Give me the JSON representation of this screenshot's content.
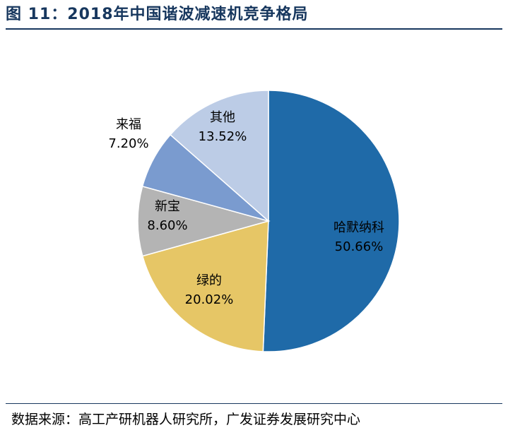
{
  "figure": {
    "title": "图 11：2018年中国谐波减速机竞争格局",
    "source": "数据来源：高工产研机器人研究所，广发证券发展研究中心"
  },
  "chart_data": {
    "type": "pie",
    "start_angle_deg": 0,
    "direction": "clockwise",
    "slices": [
      {
        "name": "哈默纳科",
        "value": 50.66,
        "value_label": "50.66%",
        "color": "#1f6aa8"
      },
      {
        "name": "绿的",
        "value": 20.02,
        "value_label": "20.02%",
        "color": "#e6c666"
      },
      {
        "name": "新宝",
        "value": 8.6,
        "value_label": "8.60%",
        "color": "#b4b4b4"
      },
      {
        "name": "来福",
        "value": 7.2,
        "value_label": "7.20%",
        "color": "#7a9bcf"
      },
      {
        "name": "其他",
        "value": 13.52,
        "value_label": "13.52%",
        "color": "#bccce6"
      }
    ]
  }
}
